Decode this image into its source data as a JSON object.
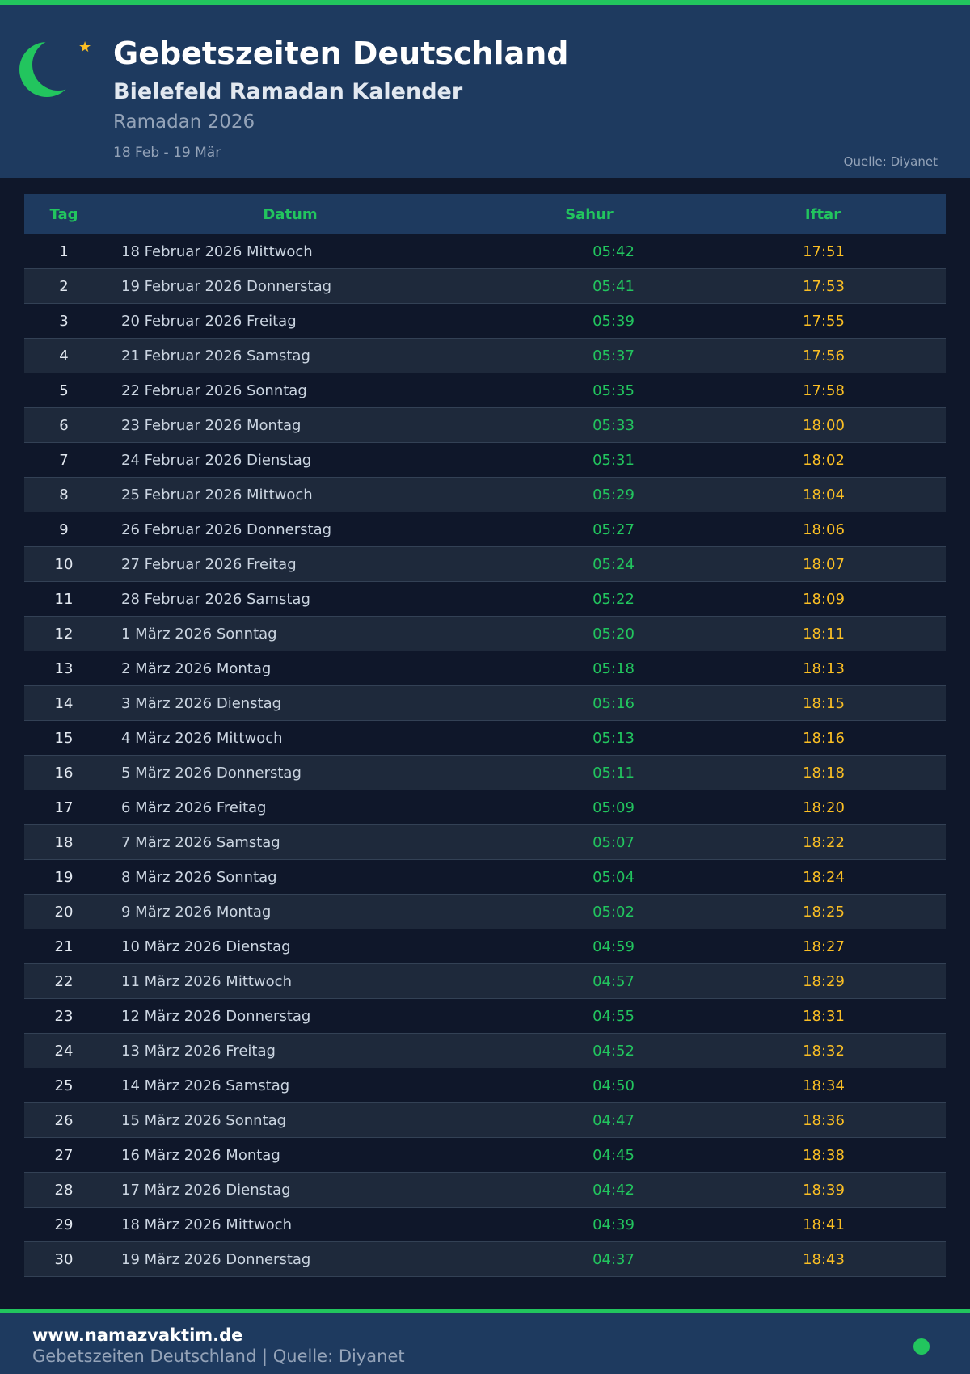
{
  "header": {
    "title": "Gebetszeiten Deutschland",
    "subtitle": "Bielefeld Ramadan Kalender",
    "year": "Ramadan 2026",
    "range": "18 Feb - 19 Mär",
    "source": "Quelle: Diyanet"
  },
  "colors": {
    "accent": "#22c55e",
    "iftar": "#fbbf24",
    "header_bg": "#1e3a5f"
  },
  "table": {
    "headers": [
      "Tag",
      "Datum",
      "Sahur",
      "Iftar"
    ],
    "rows": [
      [
        "1",
        "18 Februar 2026 Mittwoch",
        "05:42",
        "17:51"
      ],
      [
        "2",
        "19 Februar 2026 Donnerstag",
        "05:41",
        "17:53"
      ],
      [
        "3",
        "20 Februar 2026 Freitag",
        "05:39",
        "17:55"
      ],
      [
        "4",
        "21 Februar 2026 Samstag",
        "05:37",
        "17:56"
      ],
      [
        "5",
        "22 Februar 2026 Sonntag",
        "05:35",
        "17:58"
      ],
      [
        "6",
        "23 Februar 2026 Montag",
        "05:33",
        "18:00"
      ],
      [
        "7",
        "24 Februar 2026 Dienstag",
        "05:31",
        "18:02"
      ],
      [
        "8",
        "25 Februar 2026 Mittwoch",
        "05:29",
        "18:04"
      ],
      [
        "9",
        "26 Februar 2026 Donnerstag",
        "05:27",
        "18:06"
      ],
      [
        "10",
        "27 Februar 2026 Freitag",
        "05:24",
        "18:07"
      ],
      [
        "11",
        "28 Februar 2026 Samstag",
        "05:22",
        "18:09"
      ],
      [
        "12",
        "1 März 2026 Sonntag",
        "05:20",
        "18:11"
      ],
      [
        "13",
        "2 März 2026 Montag",
        "05:18",
        "18:13"
      ],
      [
        "14",
        "3 März 2026 Dienstag",
        "05:16",
        "18:15"
      ],
      [
        "15",
        "4 März 2026 Mittwoch",
        "05:13",
        "18:16"
      ],
      [
        "16",
        "5 März 2026 Donnerstag",
        "05:11",
        "18:18"
      ],
      [
        "17",
        "6 März 2026 Freitag",
        "05:09",
        "18:20"
      ],
      [
        "18",
        "7 März 2026 Samstag",
        "05:07",
        "18:22"
      ],
      [
        "19",
        "8 März 2026 Sonntag",
        "05:04",
        "18:24"
      ],
      [
        "20",
        "9 März 2026 Montag",
        "05:02",
        "18:25"
      ],
      [
        "21",
        "10 März 2026 Dienstag",
        "04:59",
        "18:27"
      ],
      [
        "22",
        "11 März 2026 Mittwoch",
        "04:57",
        "18:29"
      ],
      [
        "23",
        "12 März 2026 Donnerstag",
        "04:55",
        "18:31"
      ],
      [
        "24",
        "13 März 2026 Freitag",
        "04:52",
        "18:32"
      ],
      [
        "25",
        "14 März 2026 Samstag",
        "04:50",
        "18:34"
      ],
      [
        "26",
        "15 März 2026 Sonntag",
        "04:47",
        "18:36"
      ],
      [
        "27",
        "16 März 2026 Montag",
        "04:45",
        "18:38"
      ],
      [
        "28",
        "17 März 2026 Dienstag",
        "04:42",
        "18:39"
      ],
      [
        "29",
        "18 März 2026 Mittwoch",
        "04:39",
        "18:41"
      ],
      [
        "30",
        "19 März 2026 Donnerstag",
        "04:37",
        "18:43"
      ]
    ]
  },
  "footer": {
    "site": "www.namazvaktim.de",
    "tagline": "Gebetszeiten Deutschland | Quelle: Diyanet"
  }
}
